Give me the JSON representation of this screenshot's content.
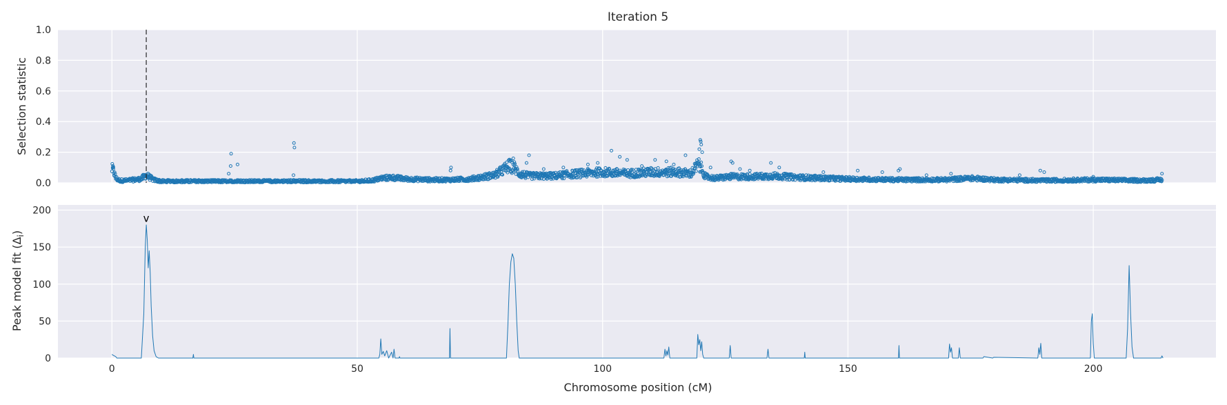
{
  "chart_data": [
    {
      "type": "scatter",
      "title": "Iteration 5",
      "xlabel": "",
      "ylabel": "Selection statistic",
      "xlim": [
        -11,
        225
      ],
      "ylim": [
        0,
        1.0
      ],
      "xticks": [
        0,
        50,
        100,
        150,
        200
      ],
      "yticks": [
        0.0,
        0.2,
        0.4,
        0.6,
        0.8,
        1.0
      ],
      "ytick_labels": [
        "0.0",
        "0.2",
        "0.4",
        "0.6",
        "0.8",
        "1.0"
      ],
      "grid": true,
      "marker": "open-circle",
      "color": "#1f77b4",
      "annotation_vline_x": 7,
      "profile_x": [
        0,
        0.3,
        0.8,
        1.5,
        3,
        6,
        6.5,
        7,
        7.5,
        8.5,
        10,
        20,
        30,
        40,
        50,
        53,
        55,
        57,
        60,
        65,
        69,
        73,
        78,
        80,
        81,
        82,
        83,
        85,
        90,
        95,
        100,
        105,
        110,
        115,
        118,
        119.5,
        120,
        121,
        123,
        126,
        130,
        135,
        140,
        150,
        160,
        170,
        175,
        180,
        190,
        200,
        210,
        214
      ],
      "profile_y": [
        0.09,
        0.08,
        0.03,
        0.015,
        0.015,
        0.025,
        0.04,
        0.05,
        0.04,
        0.02,
        0.01,
        0.01,
        0.01,
        0.01,
        0.01,
        0.015,
        0.03,
        0.035,
        0.025,
        0.02,
        0.02,
        0.025,
        0.05,
        0.09,
        0.11,
        0.1,
        0.06,
        0.045,
        0.045,
        0.06,
        0.07,
        0.06,
        0.07,
        0.07,
        0.06,
        0.12,
        0.1,
        0.04,
        0.03,
        0.04,
        0.04,
        0.045,
        0.035,
        0.025,
        0.02,
        0.02,
        0.03,
        0.02,
        0.015,
        0.02,
        0.015,
        0.02
      ],
      "outliers": [
        [
          24.3,
          0.19
        ],
        [
          24.2,
          0.11
        ],
        [
          25.6,
          0.12
        ],
        [
          37.1,
          0.26
        ],
        [
          37.2,
          0.23
        ],
        [
          37.0,
          0.05
        ],
        [
          23.8,
          0.06
        ],
        [
          81.8,
          0.16
        ],
        [
          85.0,
          0.18
        ],
        [
          84.5,
          0.13
        ],
        [
          101.8,
          0.21
        ],
        [
          103.5,
          0.17
        ],
        [
          105.0,
          0.15
        ],
        [
          110.7,
          0.15
        ],
        [
          113.0,
          0.14
        ],
        [
          116.9,
          0.18
        ],
        [
          119.9,
          0.28
        ],
        [
          120.0,
          0.27
        ],
        [
          120.1,
          0.25
        ],
        [
          119.7,
          0.22
        ],
        [
          120.3,
          0.2
        ],
        [
          126.2,
          0.14
        ],
        [
          126.5,
          0.13
        ],
        [
          134.3,
          0.13
        ],
        [
          136.0,
          0.1
        ],
        [
          160.6,
          0.09
        ],
        [
          160.3,
          0.08
        ],
        [
          189.2,
          0.08
        ],
        [
          190.0,
          0.07
        ],
        [
          0.2,
          0.1
        ],
        [
          0.3,
          0.09
        ],
        [
          69.1,
          0.1
        ],
        [
          69.0,
          0.08
        ],
        [
          88.0,
          0.09
        ],
        [
          92.0,
          0.1
        ],
        [
          97.0,
          0.12
        ],
        [
          99.0,
          0.13
        ],
        [
          108.0,
          0.11
        ],
        [
          114.5,
          0.12
        ],
        [
          122.0,
          0.1
        ],
        [
          128.0,
          0.09
        ],
        [
          130.0,
          0.08
        ],
        [
          145.0,
          0.07
        ],
        [
          152.0,
          0.08
        ],
        [
          157.0,
          0.07
        ],
        [
          166.0,
          0.05
        ],
        [
          171.0,
          0.06
        ],
        [
          185.0,
          0.05
        ],
        [
          200.0,
          0.04
        ],
        [
          214.0,
          0.06
        ]
      ]
    },
    {
      "type": "line",
      "title": "",
      "xlabel": "Chromosome position (cM)",
      "ylabel": "Peak model fit (Δ",
      "ylabel_subscript": "i",
      "ylabel_suffix": ")",
      "xlim": [
        -11,
        225
      ],
      "ylim": [
        0,
        207
      ],
      "xticks": [
        0,
        50,
        100,
        150,
        200
      ],
      "xtick_labels": [
        "0",
        "50",
        "100",
        "150",
        "200"
      ],
      "yticks": [
        0,
        50,
        100,
        150,
        200
      ],
      "ytick_labels": [
        "0",
        "50",
        "100",
        "150",
        "200"
      ],
      "grid": true,
      "color": "#1f77b4",
      "annotation_marker": {
        "x": 7,
        "y": 189,
        "text": "v"
      },
      "x": [
        0,
        0.2,
        0.5,
        0.8,
        1.0,
        6.0,
        6.5,
        6.8,
        7.0,
        7.2,
        7.4,
        7.6,
        7.8,
        8.0,
        8.3,
        8.6,
        9.0,
        9.5,
        16.5,
        16.6,
        16.7,
        54.4,
        54.6,
        54.8,
        55.0,
        55.3,
        55.6,
        56.0,
        56.4,
        57.0,
        57.3,
        57.5,
        57.7,
        58.5,
        58.6,
        58.7,
        68.8,
        68.9,
        69.0,
        80.4,
        80.7,
        81.0,
        81.3,
        81.6,
        81.9,
        82.2,
        82.5,
        82.8,
        83.0,
        112.5,
        112.7,
        112.9,
        113.1,
        113.3,
        113.5,
        113.7,
        119.2,
        119.4,
        119.6,
        119.8,
        120.0,
        120.2,
        120.4,
        120.6,
        125.8,
        126.0,
        126.2,
        133.5,
        133.7,
        133.9,
        141.1,
        141.2,
        141.3,
        160.3,
        160.4,
        160.5,
        170.5,
        170.7,
        170.9,
        171.1,
        171.3,
        172.5,
        172.7,
        172.9,
        177.5,
        177.7,
        179.5,
        179.7,
        188.7,
        188.9,
        189.1,
        189.3,
        189.5,
        199.4,
        199.6,
        199.8,
        200.0,
        200.2,
        206.7,
        207.0,
        207.3,
        207.6,
        207.9,
        208.2,
        213.8,
        214.0,
        214.2
      ],
      "y": [
        5,
        4,
        3,
        2,
        0,
        0,
        60,
        150,
        180,
        160,
        122,
        145,
        115,
        70,
        30,
        10,
        2,
        0,
        0,
        5,
        0,
        0,
        5,
        26,
        5,
        9,
        3,
        10,
        0,
        8,
        0,
        12,
        0,
        0,
        2,
        0,
        0,
        40,
        0,
        0,
        45,
        100,
        130,
        141,
        135,
        100,
        50,
        10,
        0,
        0,
        12,
        3,
        10,
        4,
        15,
        0,
        0,
        32,
        18,
        25,
        10,
        22,
        5,
        0,
        0,
        17,
        0,
        0,
        12,
        0,
        0,
        8,
        0,
        0,
        17,
        0,
        0,
        19,
        8,
        14,
        0,
        0,
        14,
        0,
        0,
        2,
        0,
        1,
        0,
        14,
        5,
        20,
        0,
        0,
        50,
        60,
        20,
        0,
        0,
        40,
        125,
        60,
        15,
        0,
        0,
        3,
        0
      ]
    }
  ]
}
